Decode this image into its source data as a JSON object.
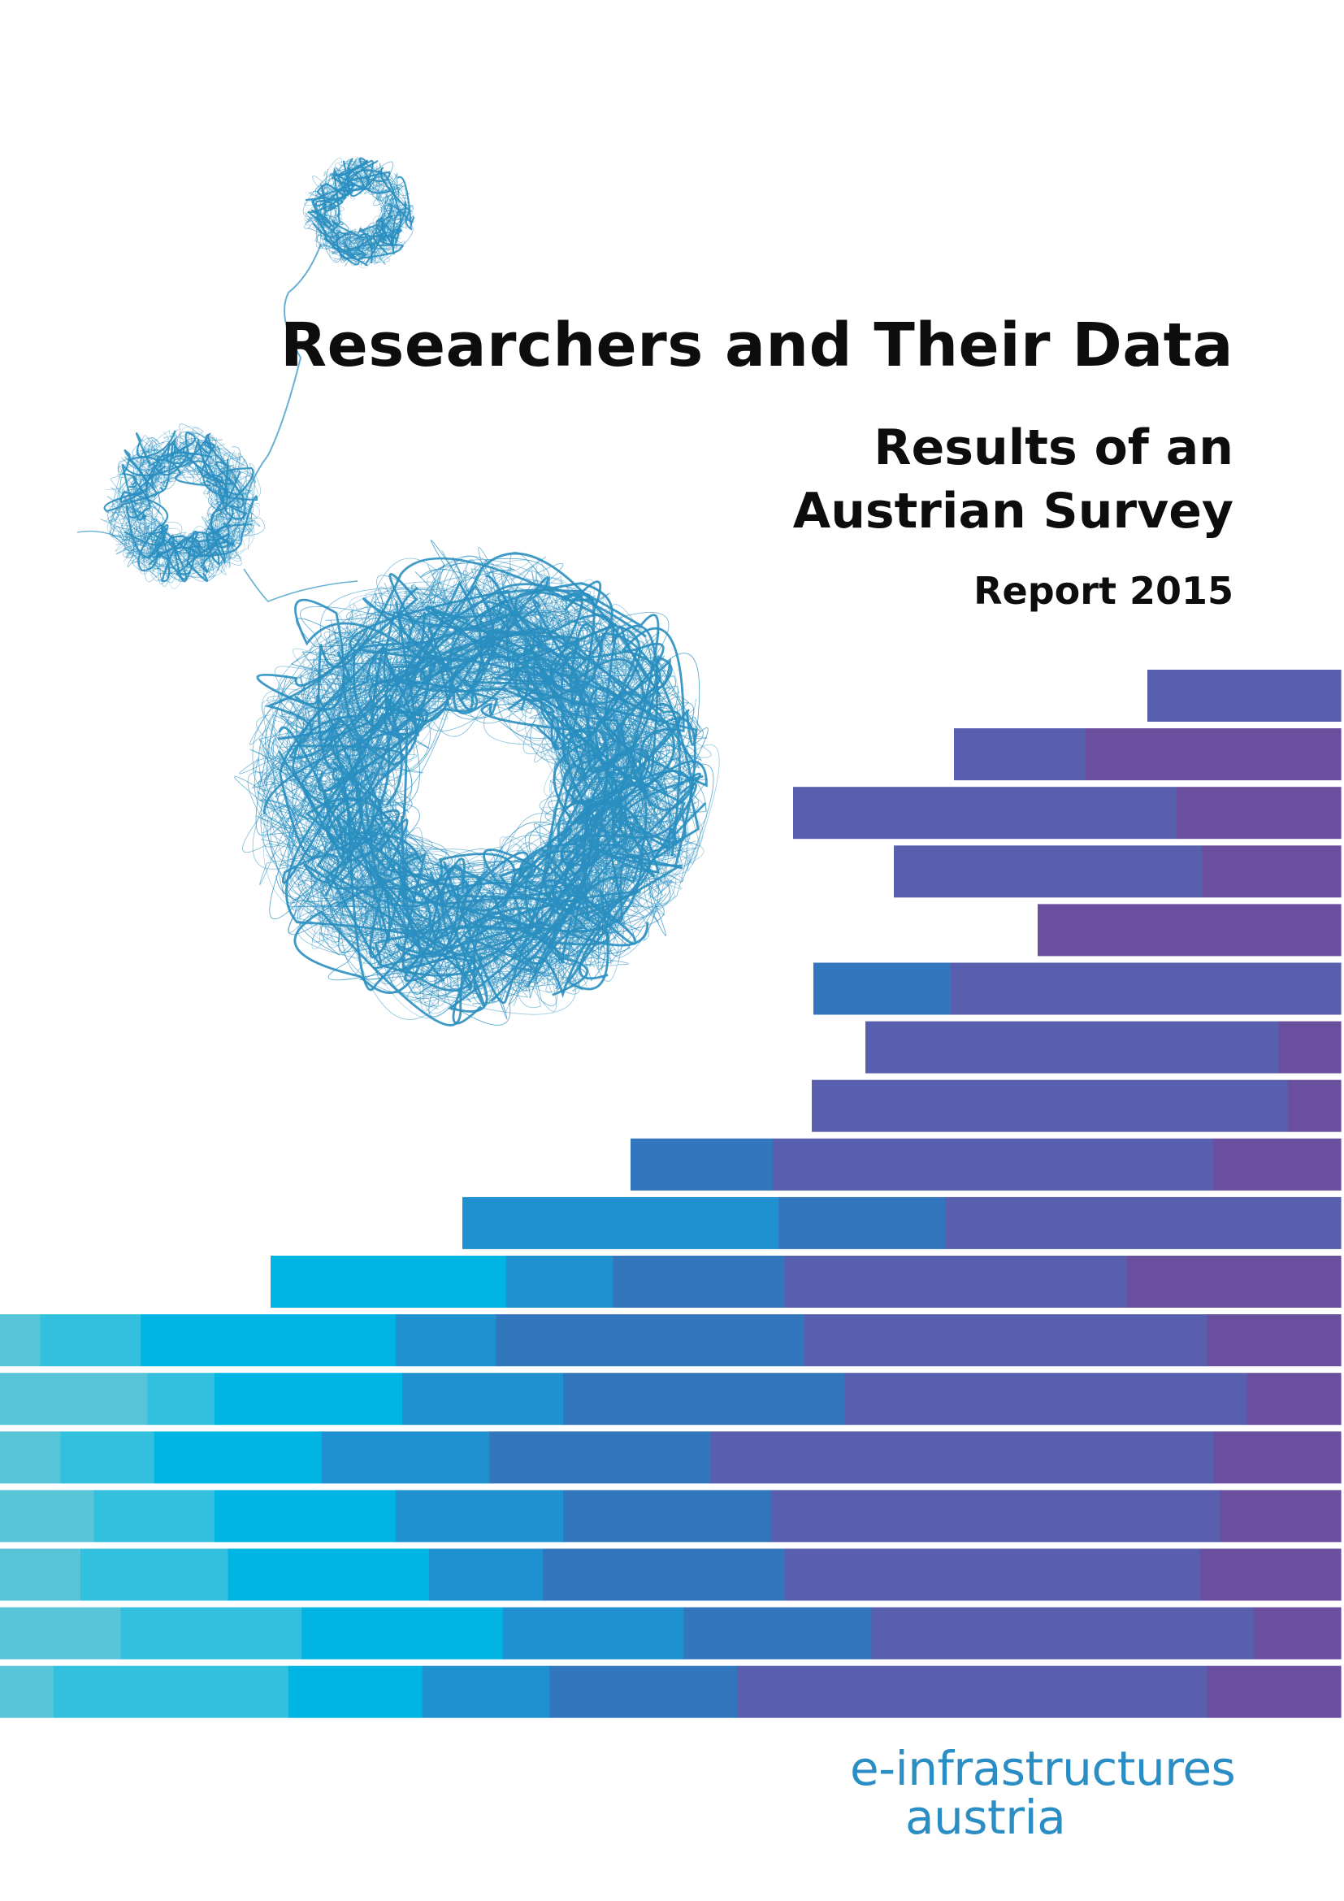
{
  "cover": {
    "title": "Researchers and Their Data",
    "subtitle_line1": "Results of an",
    "subtitle_line2": "Austrian Survey",
    "report_label": "Report 2015",
    "logo_line1": "e-infrastructures",
    "logo_line2": "austria"
  },
  "palette": {
    "turquoise": "#58c4d7",
    "cyan": "#33c0df",
    "sky": "#00b4e4",
    "blue": "#1f90d0",
    "mid_blue": "#3276bd",
    "indigo": "#575fae",
    "purple": "#6a4f9e",
    "network_blue": "#2a8fc0",
    "logo": "#2a8ec5"
  },
  "decoration": {
    "name": "stacked-bars-graphic",
    "rows": [
      [
        [
          "indigo",
          1
        ]
      ],
      [
        [
          "indigo",
          0.34
        ],
        [
          "purple",
          0.66
        ]
      ],
      [
        [
          "indigo",
          0.7
        ],
        [
          "purple",
          0.3
        ]
      ],
      [
        [
          "indigo",
          0.69
        ],
        [
          "purple",
          0.31
        ]
      ],
      [
        [
          "purple",
          1
        ]
      ],
      [
        [
          "mid_blue",
          0.26
        ],
        [
          "indigo",
          0.74
        ]
      ],
      [
        [
          "indigo",
          0.87
        ],
        [
          "purple",
          0.13
        ]
      ],
      [
        [
          "indigo",
          0.9
        ],
        [
          "purple",
          0.1
        ]
      ],
      [
        [
          "mid_blue",
          0.2
        ],
        [
          "indigo",
          0.62
        ],
        [
          "purple",
          0.18
        ]
      ],
      [
        [
          "blue",
          0.36
        ],
        [
          "mid_blue",
          0.19
        ],
        [
          "indigo",
          0.45
        ]
      ],
      [
        [
          "sky",
          0.22
        ],
        [
          "blue",
          0.1
        ],
        [
          "mid_blue",
          0.16
        ],
        [
          "indigo",
          0.32
        ],
        [
          "purple",
          0.2
        ]
      ],
      [
        [
          "turquoise",
          0.03
        ],
        [
          "cyan",
          0.075
        ],
        [
          "sky",
          0.19
        ],
        [
          "blue",
          0.075
        ],
        [
          "mid_blue",
          0.23
        ],
        [
          "indigo",
          0.3
        ],
        [
          "purple",
          0.1
        ]
      ],
      [
        [
          "turquoise",
          0.11
        ],
        [
          "cyan",
          0.05
        ],
        [
          "sky",
          0.14
        ],
        [
          "blue",
          0.12
        ],
        [
          "mid_blue",
          0.21
        ],
        [
          "indigo",
          0.3
        ],
        [
          "purple",
          0.07
        ]
      ],
      [
        [
          "turquoise",
          0.045
        ],
        [
          "cyan",
          0.07
        ],
        [
          "sky",
          0.125
        ],
        [
          "blue",
          0.125
        ],
        [
          "mid_blue",
          0.165
        ],
        [
          "indigo",
          0.375
        ],
        [
          "purple",
          0.095
        ]
      ],
      [
        [
          "turquoise",
          0.07
        ],
        [
          "cyan",
          0.09
        ],
        [
          "sky",
          0.135
        ],
        [
          "blue",
          0.125
        ],
        [
          "mid_blue",
          0.155
        ],
        [
          "indigo",
          0.335
        ],
        [
          "purple",
          0.09
        ]
      ],
      [
        [
          "turquoise",
          0.06
        ],
        [
          "cyan",
          0.11
        ],
        [
          "sky",
          0.15
        ],
        [
          "blue",
          0.085
        ],
        [
          "mid_blue",
          0.18
        ],
        [
          "indigo",
          0.31
        ],
        [
          "purple",
          0.105
        ]
      ],
      [
        [
          "turquoise",
          0.09
        ],
        [
          "cyan",
          0.135
        ],
        [
          "sky",
          0.15
        ],
        [
          "blue",
          0.135
        ],
        [
          "mid_blue",
          0.14
        ],
        [
          "indigo",
          0.285
        ],
        [
          "purple",
          0.065
        ]
      ],
      [
        [
          "turquoise",
          0.04
        ],
        [
          "cyan",
          0.175
        ],
        [
          "sky",
          0.1
        ],
        [
          "blue",
          0.095
        ],
        [
          "mid_blue",
          0.14
        ],
        [
          "indigo",
          0.35
        ],
        [
          "purple",
          0.1
        ]
      ]
    ]
  }
}
